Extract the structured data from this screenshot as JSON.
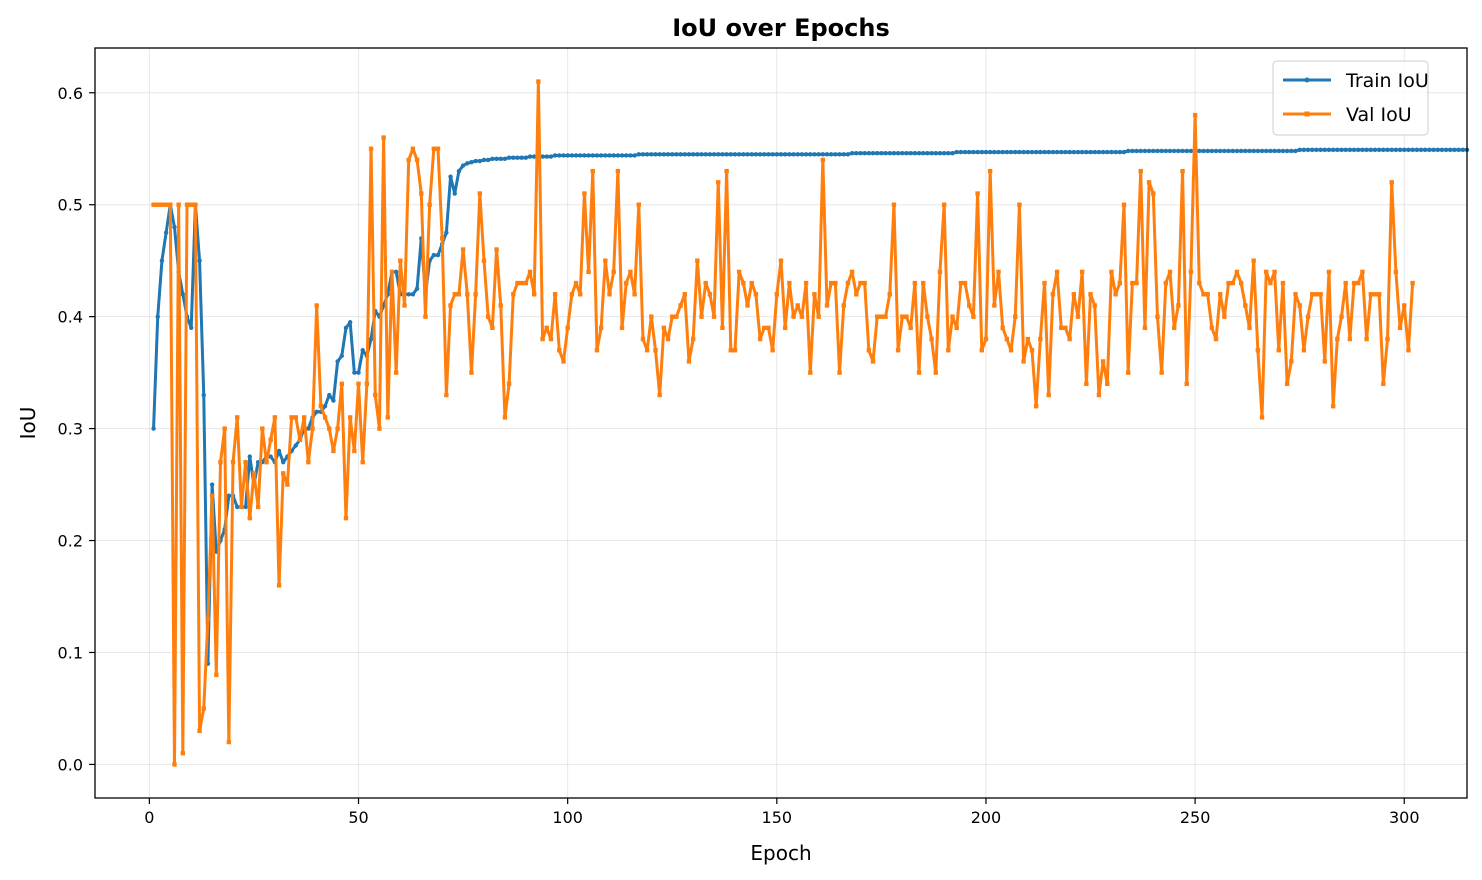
{
  "chart_data": {
    "type": "line",
    "title": "IoU over Epochs",
    "xlabel": "Epoch",
    "ylabel": "IoU",
    "xlim": [
      -13,
      315
    ],
    "ylim": [
      -0.03,
      0.64
    ],
    "xticks": [
      0,
      50,
      100,
      150,
      200,
      250,
      300
    ],
    "yticks": [
      0.0,
      0.1,
      0.2,
      0.3,
      0.4,
      0.5,
      0.6
    ],
    "ytick_labels": [
      "0.0",
      "0.1",
      "0.2",
      "0.3",
      "0.4",
      "0.5",
      "0.6"
    ],
    "grid": true,
    "legend": "top-right",
    "series": [
      {
        "name": "Train IoU",
        "color": "#1f77b4",
        "marker": "circle",
        "x_start": 1,
        "values": [
          0.3,
          0.4,
          0.45,
          0.475,
          0.5,
          0.48,
          0.44,
          0.42,
          0.4,
          0.39,
          0.5,
          0.45,
          0.33,
          0.09,
          0.25,
          0.19,
          0.2,
          0.21,
          0.24,
          0.24,
          0.23,
          0.23,
          0.23,
          0.275,
          0.25,
          0.27,
          0.27,
          0.275,
          0.275,
          0.27,
          0.28,
          0.27,
          0.275,
          0.28,
          0.285,
          0.29,
          0.3,
          0.3,
          0.31,
          0.315,
          0.315,
          0.32,
          0.33,
          0.325,
          0.36,
          0.365,
          0.39,
          0.395,
          0.35,
          0.35,
          0.37,
          0.365,
          0.38,
          0.405,
          0.4,
          0.41,
          0.42,
          0.44,
          0.44,
          0.42,
          0.42,
          0.42,
          0.42,
          0.425,
          0.47,
          0.42,
          0.45,
          0.455,
          0.455,
          0.465,
          0.475,
          0.525,
          0.51,
          0.53,
          0.535,
          0.537,
          0.538,
          0.539,
          0.539,
          0.54,
          0.54,
          0.541,
          0.541,
          0.541,
          0.541,
          0.542,
          0.542,
          0.542,
          0.542,
          0.542,
          0.543,
          0.543,
          0.543,
          0.543,
          0.543,
          0.543,
          0.544,
          0.544,
          0.544,
          0.544,
          0.544,
          0.544,
          0.544,
          0.544,
          0.544,
          0.544,
          0.544,
          0.544,
          0.544,
          0.544,
          0.544,
          0.544,
          0.544,
          0.544,
          0.544,
          0.544,
          0.545,
          0.545,
          0.545,
          0.545,
          0.545,
          0.545,
          0.545,
          0.545,
          0.545,
          0.545,
          0.545,
          0.545,
          0.545,
          0.545,
          0.545,
          0.545,
          0.545,
          0.545,
          0.545,
          0.545,
          0.545,
          0.545,
          0.545,
          0.545,
          0.545,
          0.545,
          0.545,
          0.545,
          0.545,
          0.545,
          0.545,
          0.545,
          0.545,
          0.545,
          0.545,
          0.545,
          0.545,
          0.545,
          0.545,
          0.545,
          0.545,
          0.545,
          0.545,
          0.545,
          0.545,
          0.545,
          0.545,
          0.545,
          0.545,
          0.545,
          0.545,
          0.546,
          0.546,
          0.546,
          0.546,
          0.546,
          0.546,
          0.546,
          0.546,
          0.546,
          0.546,
          0.546,
          0.546,
          0.546,
          0.546,
          0.546,
          0.546,
          0.546,
          0.546,
          0.546,
          0.546,
          0.546,
          0.546,
          0.546,
          0.546,
          0.546,
          0.547,
          0.547,
          0.547,
          0.547,
          0.547,
          0.547,
          0.547,
          0.547,
          0.547,
          0.547,
          0.547,
          0.547,
          0.547,
          0.547,
          0.547,
          0.547,
          0.547,
          0.547,
          0.547,
          0.547,
          0.547,
          0.547,
          0.547,
          0.547,
          0.547,
          0.547,
          0.547,
          0.547,
          0.547,
          0.547,
          0.547,
          0.547,
          0.547,
          0.547,
          0.547,
          0.547,
          0.547,
          0.547,
          0.547,
          0.547,
          0.547,
          0.548,
          0.548,
          0.548,
          0.548,
          0.548,
          0.548,
          0.548,
          0.548,
          0.548,
          0.548,
          0.548,
          0.548,
          0.548,
          0.548,
          0.548,
          0.548,
          0.548,
          0.548,
          0.548,
          0.548,
          0.548,
          0.548,
          0.548,
          0.548,
          0.548,
          0.548,
          0.548,
          0.548,
          0.548,
          0.548,
          0.548,
          0.548,
          0.548,
          0.548,
          0.548,
          0.548,
          0.548,
          0.548,
          0.548,
          0.548,
          0.548,
          0.549,
          0.549,
          0.549,
          0.549,
          0.549,
          0.549,
          0.549,
          0.549,
          0.549,
          0.549,
          0.549,
          0.549,
          0.549,
          0.549,
          0.549,
          0.549,
          0.549,
          0.549,
          0.549,
          0.549,
          0.549,
          0.549,
          0.549,
          0.549,
          0.549,
          0.549,
          0.549,
          0.549,
          0.549,
          0.549,
          0.549,
          0.549,
          0.549,
          0.549,
          0.549,
          0.549,
          0.549,
          0.549,
          0.549,
          0.549,
          0.549
        ]
      },
      {
        "name": "Val IoU",
        "color": "#ff7f0e",
        "marker": "square",
        "x_start": 1,
        "values": [
          0.5,
          0.5,
          0.5,
          0.5,
          0.5,
          0.0,
          0.5,
          0.01,
          0.5,
          0.5,
          0.5,
          0.03,
          0.05,
          0.13,
          0.24,
          0.08,
          0.27,
          0.3,
          0.02,
          0.27,
          0.31,
          0.23,
          0.27,
          0.22,
          0.26,
          0.23,
          0.3,
          0.27,
          0.29,
          0.31,
          0.16,
          0.26,
          0.25,
          0.31,
          0.31,
          0.29,
          0.31,
          0.27,
          0.3,
          0.41,
          0.32,
          0.31,
          0.3,
          0.28,
          0.3,
          0.34,
          0.22,
          0.31,
          0.28,
          0.34,
          0.27,
          0.34,
          0.55,
          0.33,
          0.3,
          0.56,
          0.31,
          0.44,
          0.35,
          0.45,
          0.41,
          0.54,
          0.55,
          0.54,
          0.51,
          0.4,
          0.5,
          0.55,
          0.55,
          0.47,
          0.33,
          0.41,
          0.42,
          0.42,
          0.46,
          0.42,
          0.35,
          0.42,
          0.51,
          0.45,
          0.4,
          0.39,
          0.46,
          0.41,
          0.31,
          0.34,
          0.42,
          0.43,
          0.43,
          0.43,
          0.44,
          0.42,
          0.61,
          0.38,
          0.39,
          0.38,
          0.42,
          0.37,
          0.36,
          0.39,
          0.42,
          0.43,
          0.42,
          0.51,
          0.44,
          0.53,
          0.37,
          0.39,
          0.45,
          0.42,
          0.44,
          0.53,
          0.39,
          0.43,
          0.44,
          0.42,
          0.5,
          0.38,
          0.37,
          0.4,
          0.37,
          0.33,
          0.39,
          0.38,
          0.4,
          0.4,
          0.41,
          0.42,
          0.36,
          0.38,
          0.45,
          0.4,
          0.43,
          0.42,
          0.4,
          0.52,
          0.39,
          0.53,
          0.37,
          0.37,
          0.44,
          0.43,
          0.41,
          0.43,
          0.42,
          0.38,
          0.39,
          0.39,
          0.37,
          0.42,
          0.45,
          0.39,
          0.43,
          0.4,
          0.41,
          0.4,
          0.43,
          0.35,
          0.42,
          0.4,
          0.54,
          0.41,
          0.43,
          0.43,
          0.35,
          0.41,
          0.43,
          0.44,
          0.42,
          0.43,
          0.43,
          0.37,
          0.36,
          0.4,
          0.4,
          0.4,
          0.42,
          0.5,
          0.37,
          0.4,
          0.4,
          0.39,
          0.43,
          0.35,
          0.43,
          0.4,
          0.38,
          0.35,
          0.44,
          0.5,
          0.37,
          0.4,
          0.39,
          0.43,
          0.43,
          0.41,
          0.4,
          0.51,
          0.37,
          0.38,
          0.53,
          0.41,
          0.44,
          0.39,
          0.38,
          0.37,
          0.4,
          0.5,
          0.36,
          0.38,
          0.37,
          0.32,
          0.38,
          0.43,
          0.33,
          0.42,
          0.44,
          0.39,
          0.39,
          0.38,
          0.42,
          0.4,
          0.44,
          0.34,
          0.42,
          0.41,
          0.33,
          0.36,
          0.34,
          0.44,
          0.42,
          0.43,
          0.5,
          0.35,
          0.43,
          0.43,
          0.53,
          0.39,
          0.52,
          0.51,
          0.4,
          0.35,
          0.43,
          0.44,
          0.39,
          0.41,
          0.53,
          0.34,
          0.44,
          0.58,
          0.43,
          0.42,
          0.42,
          0.39,
          0.38,
          0.42,
          0.4,
          0.43,
          0.43,
          0.44,
          0.43,
          0.41,
          0.39,
          0.45,
          0.37,
          0.31,
          0.44,
          0.43,
          0.44,
          0.37,
          0.43,
          0.34,
          0.36,
          0.42,
          0.41,
          0.37,
          0.4,
          0.42,
          0.42,
          0.42,
          0.36,
          0.44,
          0.32,
          0.38,
          0.4,
          0.43,
          0.38,
          0.43,
          0.43,
          0.44,
          0.38,
          0.42,
          0.42,
          0.42,
          0.34,
          0.38,
          0.52,
          0.44,
          0.39,
          0.41,
          0.37,
          0.43
        ]
      }
    ]
  }
}
